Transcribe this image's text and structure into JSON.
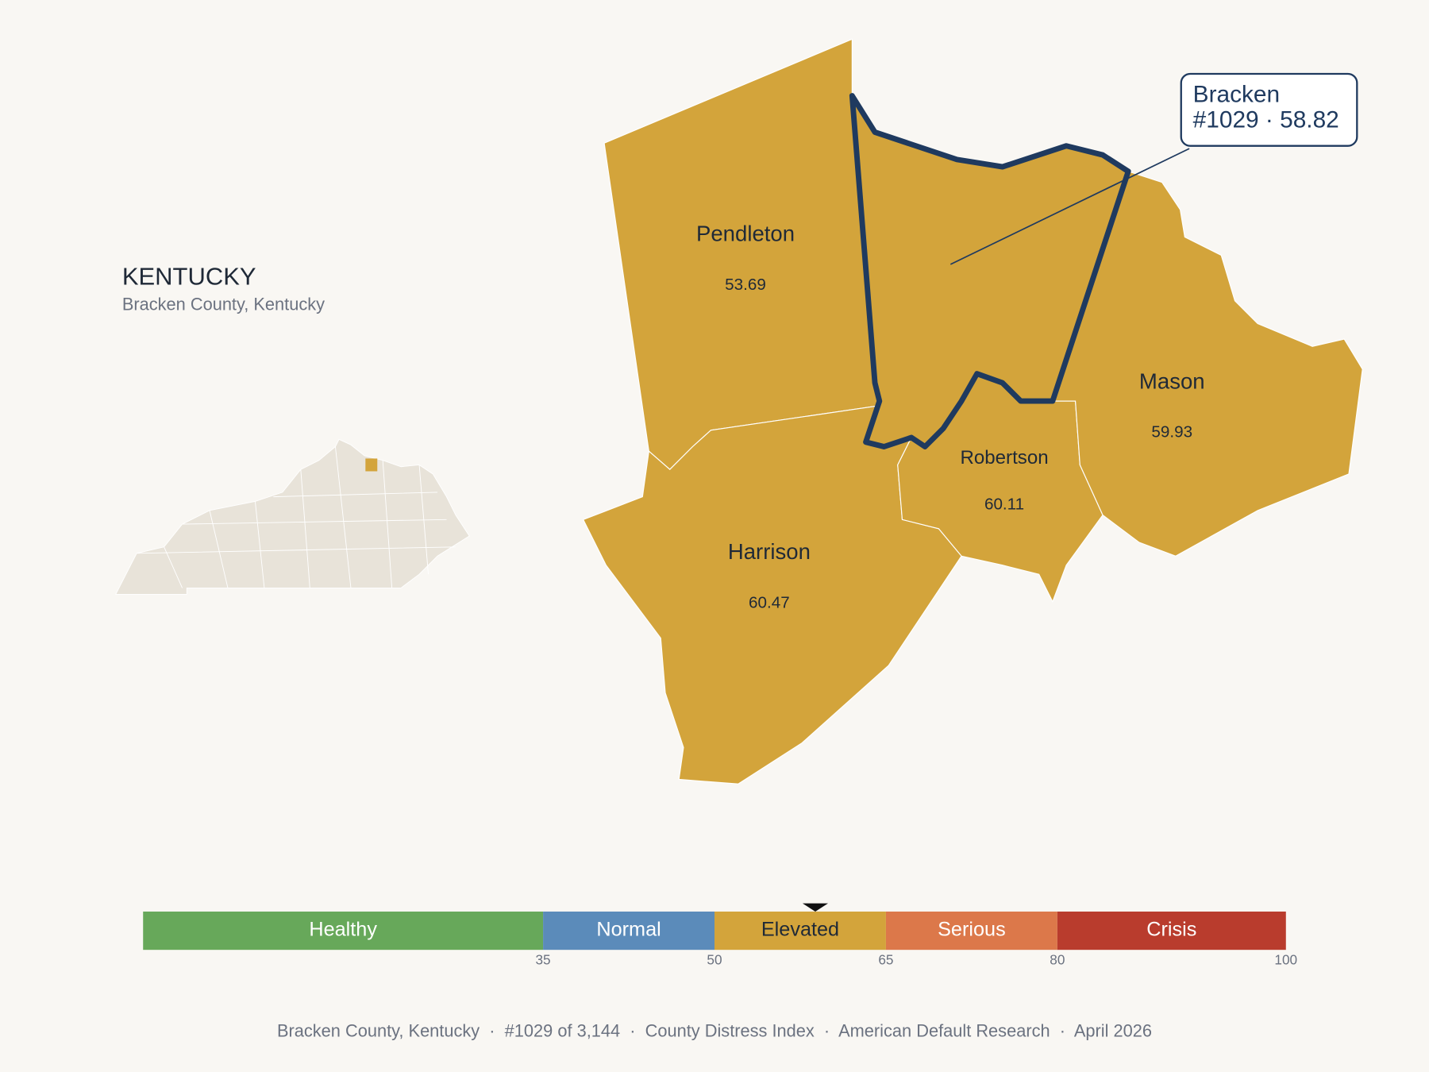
{
  "header": {
    "title": "KENTUCKY",
    "subtitle": "Bracken County, Kentucky"
  },
  "counties": [
    {
      "name": "Pendleton",
      "value": 53.69,
      "color": "#d3a43b"
    },
    {
      "name": "Harrison",
      "value": 60.47,
      "color": "#d3a43b"
    },
    {
      "name": "Robertson",
      "value": 60.11,
      "color": "#d3a43b"
    },
    {
      "name": "Mason",
      "value": 59.93,
      "color": "#d3a43b"
    }
  ],
  "selected": {
    "value": 58.82,
    "color": "#d3a43b",
    "outline": "#1f3a5f",
    "callout_lines": [
      "Bracken",
      "#1029 · 58.82"
    ]
  },
  "legend": {
    "range": [
      0,
      100
    ],
    "ticks": [
      35,
      50,
      65,
      80,
      100
    ],
    "bands": [
      {
        "label": "Healthy",
        "color": "#67a85a",
        "text_color": "#ffffff"
      },
      {
        "label": "Normal",
        "color": "#5b8bba",
        "text_color": "#ffffff"
      },
      {
        "label": "Elevated",
        "color": "#d3a43b",
        "text_color": "#1f2937"
      },
      {
        "label": "Serious",
        "color": "#dc784a",
        "text_color": "#ffffff"
      },
      {
        "label": "Crisis",
        "color": "#b93c2d",
        "text_color": "#ffffff"
      }
    ]
  },
  "footer": "Bracken County, Kentucky  ·  #1029 of 3,144  ·  County Distress Index  ·  American Default Research  ·  April 2026"
}
